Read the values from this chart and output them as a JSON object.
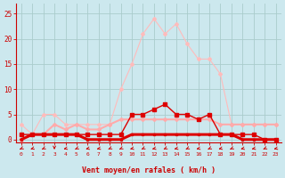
{
  "bg_color": "#cce8ee",
  "grid_color": "#aacccc",
  "x_labels": [
    "0",
    "1",
    "2",
    "3",
    "4",
    "5",
    "6",
    "7",
    "8",
    "9",
    "10",
    "11",
    "12",
    "13",
    "14",
    "15",
    "16",
    "17",
    "18",
    "19",
    "20",
    "21",
    "22",
    "23"
  ],
  "xlabel": "Vent moyen/en rafales ( km/h )",
  "ylim": [
    -0.5,
    27
  ],
  "yticks": [
    0,
    5,
    10,
    15,
    20,
    25
  ],
  "line_light_pink": [
    3,
    1,
    5,
    5,
    3,
    3,
    3,
    3,
    3,
    10,
    15,
    21,
    24,
    21,
    23,
    19,
    16,
    16,
    13,
    3,
    3,
    3,
    3,
    3
  ],
  "line_medium_pink": [
    0,
    1,
    1,
    3,
    2,
    3,
    2,
    2,
    3,
    4,
    4,
    4,
    4,
    4,
    4,
    4,
    4,
    4,
    3,
    3,
    3,
    3,
    3,
    3
  ],
  "line_dark_red": [
    1,
    1,
    1,
    1,
    1,
    1,
    1,
    1,
    1,
    1,
    5,
    5,
    6,
    7,
    5,
    5,
    4,
    5,
    1,
    1,
    1,
    1,
    0,
    0
  ],
  "line_zero": [
    0,
    1,
    1,
    1,
    1,
    1,
    0,
    0,
    0,
    0,
    1,
    1,
    1,
    1,
    1,
    1,
    1,
    1,
    1,
    1,
    0,
    0,
    0,
    0
  ],
  "color_light_pink": "#ffbbbb",
  "color_medium_pink": "#ffaaaa",
  "color_dark_red": "#dd0000",
  "color_axis": "#cc0000",
  "arrow_dirs": [
    225,
    210,
    225,
    210,
    270,
    225,
    210,
    210,
    225,
    225,
    210,
    225,
    210,
    225,
    210,
    225,
    210,
    225,
    210,
    225,
    210,
    210,
    225,
    210
  ]
}
